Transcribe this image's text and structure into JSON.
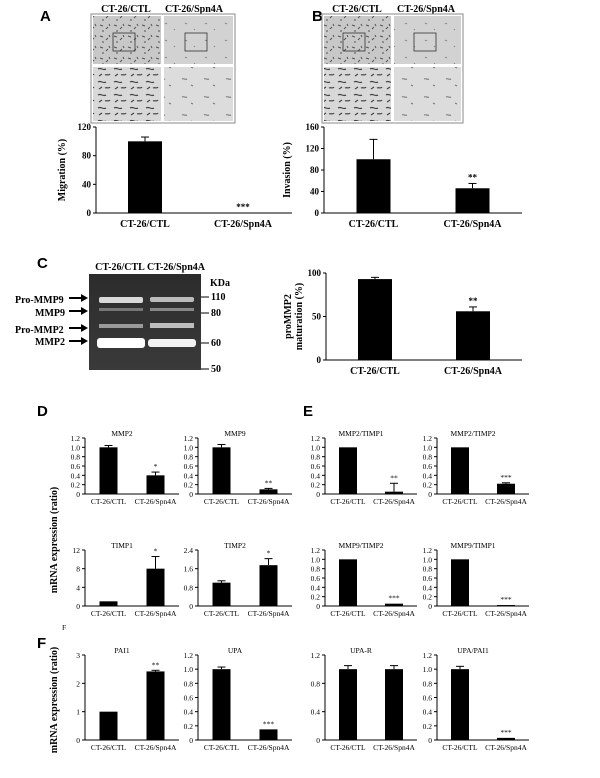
{
  "figure": {
    "panel_letters": [
      "A",
      "B",
      "C",
      "D",
      "E",
      "F",
      "F"
    ],
    "photo_headers": [
      "CT-26/CTL",
      "CT-26/Spn4A"
    ],
    "gel": {
      "lane_labels": [
        "CT-26/CTL",
        "CT-26/Spn4A"
      ],
      "kda_label": "KDa",
      "kda_ticks": [
        "110",
        "80",
        "60",
        "50"
      ],
      "band_labels": [
        "Pro-MMP9",
        "MMP9",
        "Pro-MMP2",
        "MMP2"
      ]
    },
    "group_ylabels": [
      "mRNA expression (ratio)",
      "mRNA expression (ratio)"
    ]
  },
  "chart_data": [
    {
      "id": "A",
      "type": "bar",
      "title": "",
      "ylabel": "Migration (%)",
      "categories": [
        "CT-26/CTL",
        "CT-26/Spn4A"
      ],
      "values": [
        100,
        0
      ],
      "errors": [
        6,
        0
      ],
      "sig": [
        "",
        "***"
      ],
      "ylim": [
        0,
        120
      ],
      "yticks": [
        "0",
        "40",
        "80",
        "120"
      ]
    },
    {
      "id": "B",
      "type": "bar",
      "title": "",
      "ylabel": "Invasion (%)",
      "categories": [
        "CT-26/CTL",
        "CT-26/Spn4A"
      ],
      "values": [
        100,
        46
      ],
      "errors": [
        37,
        9
      ],
      "sig": [
        "",
        "**"
      ],
      "ylim": [
        0,
        160
      ],
      "yticks": [
        "0",
        "40",
        "80",
        "120",
        "160"
      ]
    },
    {
      "id": "C",
      "type": "bar",
      "title": "",
      "ylabel": "proMMP2 maturation (%)",
      "categories": [
        "CT-26/CTL",
        "CT-26/Spn4A"
      ],
      "values": [
        93,
        56
      ],
      "errors": [
        2,
        5
      ],
      "sig": [
        "",
        "**"
      ],
      "ylim": [
        0,
        100
      ],
      "yticks": [
        "0",
        "50",
        "100"
      ]
    },
    {
      "id": "D1",
      "type": "bar",
      "title": "MMP2",
      "ylabel": "",
      "categories": [
        "CT-26/CTL",
        "CT-26/Spn4A"
      ],
      "values": [
        1.0,
        0.4
      ],
      "errors": [
        0.04,
        0.07
      ],
      "sig": [
        "",
        "*"
      ],
      "ylim": [
        0,
        1.2
      ],
      "yticks": [
        "0",
        "0.2",
        "0.4",
        "0.6",
        "0.8",
        "1.0",
        "1.2"
      ]
    },
    {
      "id": "D2",
      "type": "bar",
      "title": "MMP9",
      "ylabel": "",
      "categories": [
        "CT-26/CTL",
        "CT-26/Spn4A"
      ],
      "values": [
        1.0,
        0.1
      ],
      "errors": [
        0.06,
        0.02
      ],
      "sig": [
        "",
        "**"
      ],
      "ylim": [
        0,
        1.2
      ],
      "yticks": [
        "0",
        "0.2",
        "0.4",
        "0.6",
        "0.8",
        "1.0",
        "1.2"
      ]
    },
    {
      "id": "D3",
      "type": "bar",
      "title": "TIMP1",
      "ylabel": "",
      "categories": [
        "CT-26/CTL",
        "CT-26/Spn4A"
      ],
      "values": [
        1.0,
        8.0
      ],
      "errors": [
        0,
        2.6
      ],
      "sig": [
        "",
        "*"
      ],
      "ylim": [
        0,
        12
      ],
      "yticks": [
        "0",
        "4",
        "8",
        "12"
      ]
    },
    {
      "id": "D4",
      "type": "bar",
      "title": "TIMP2",
      "ylabel": "",
      "categories": [
        "CT-26/CTL",
        "CT-26/Spn4A"
      ],
      "values": [
        1.0,
        1.75
      ],
      "errors": [
        0.08,
        0.28
      ],
      "sig": [
        "",
        "*"
      ],
      "ylim": [
        0,
        2.4
      ],
      "yticks": [
        "0",
        "0.8",
        "1.6",
        "2.4"
      ]
    },
    {
      "id": "E1",
      "type": "bar",
      "title": "MMP2/TIMP1",
      "ylabel": "",
      "categories": [
        "CT-26/CTL",
        "CT-26/Spn4A"
      ],
      "values": [
        1.0,
        0.05
      ],
      "errors": [
        0,
        0.18
      ],
      "sig": [
        "",
        "**"
      ],
      "ylim": [
        0,
        1.2
      ],
      "yticks": [
        "0",
        "0.2",
        "0.4",
        "0.6",
        "0.8",
        "1.0",
        "1.2"
      ]
    },
    {
      "id": "E2",
      "type": "bar",
      "title": "MMP2/TIMP2",
      "ylabel": "",
      "categories": [
        "CT-26/CTL",
        "CT-26/Spn4A"
      ],
      "values": [
        1.0,
        0.22
      ],
      "errors": [
        0,
        0.02
      ],
      "sig": [
        "",
        "***"
      ],
      "ylim": [
        0,
        1.2
      ],
      "yticks": [
        "0",
        "0.2",
        "0.4",
        "0.6",
        "0.8",
        "1.0",
        "1.2"
      ]
    },
    {
      "id": "E3",
      "type": "bar",
      "title": "MMP9/TIMP2",
      "ylabel": "",
      "categories": [
        "CT-26/CTL",
        "CT-26/Spn4A"
      ],
      "values": [
        1.0,
        0.05
      ],
      "errors": [
        0,
        0
      ],
      "sig": [
        "",
        "***"
      ],
      "ylim": [
        0,
        1.2
      ],
      "yticks": [
        "0",
        "0.2",
        "0.4",
        "0.6",
        "0.8",
        "1.0",
        "1.2"
      ]
    },
    {
      "id": "E4",
      "type": "bar",
      "title": "MMP9/TIMP1",
      "ylabel": "",
      "categories": [
        "CT-26/CTL",
        "CT-26/Spn4A"
      ],
      "values": [
        1.0,
        0.02
      ],
      "errors": [
        0,
        0
      ],
      "sig": [
        "",
        "***"
      ],
      "ylim": [
        0,
        1.2
      ],
      "yticks": [
        "0",
        "0.2",
        "0.4",
        "0.6",
        "0.8",
        "1.0",
        "1.2"
      ]
    },
    {
      "id": "F1",
      "type": "bar",
      "title": "PAI1",
      "ylabel": "",
      "categories": [
        "CT-26/CTL",
        "CT-26/Spn4A"
      ],
      "values": [
        1.0,
        2.42
      ],
      "errors": [
        0,
        0.04
      ],
      "sig": [
        "",
        "**"
      ],
      "ylim": [
        0,
        3
      ],
      "yticks": [
        "0",
        "1",
        "2",
        "3"
      ]
    },
    {
      "id": "F2",
      "type": "bar",
      "title": "UPA",
      "ylabel": "",
      "categories": [
        "CT-26/CTL",
        "CT-26/Spn4A"
      ],
      "values": [
        1.0,
        0.15
      ],
      "errors": [
        0.03,
        0
      ],
      "sig": [
        "",
        "***"
      ],
      "ylim": [
        0,
        1.2
      ],
      "yticks": [
        "0",
        "0.2",
        "0.4",
        "0.6",
        "0.8",
        "1.0",
        "1.2"
      ]
    },
    {
      "id": "F3",
      "type": "bar",
      "title": "UPA-R",
      "ylabel": "",
      "categories": [
        "CT-26/CTL",
        "CT-26/Spn4A"
      ],
      "values": [
        1.0,
        1.0
      ],
      "errors": [
        0.05,
        0.05
      ],
      "sig": [
        "",
        ""
      ],
      "ylim": [
        0,
        1.2
      ],
      "yticks": [
        "0",
        "0.4",
        "0.8",
        "1.2"
      ]
    },
    {
      "id": "F4",
      "type": "bar",
      "title": "UPA/PAI1",
      "ylabel": "",
      "categories": [
        "CT-26/CTL",
        "CT-26/Spn4A"
      ],
      "values": [
        1.0,
        0.03
      ],
      "errors": [
        0.04,
        0
      ],
      "sig": [
        "",
        "***"
      ],
      "ylim": [
        0,
        1.2
      ],
      "yticks": [
        "0",
        "0.2",
        "0.4",
        "0.6",
        "0.8",
        "1.0",
        "1.2"
      ]
    }
  ]
}
